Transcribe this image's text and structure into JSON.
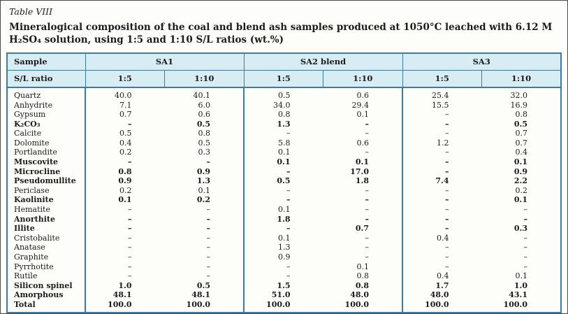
{
  "caption": {
    "label": "Table VIII",
    "title": "Mineralogical composition of the coal and blend ash samples produced at 1050°C leached with 6.12 M H₂SO₄ solution, using 1:5 and 1:10 S/L ratios (wt.%)"
  },
  "table": {
    "corner": {
      "sample_label": "Sample",
      "ratio_label": "S/L ratio"
    },
    "groups": [
      {
        "label": "SA1"
      },
      {
        "label": "SA2 blend"
      },
      {
        "label": "SA3"
      }
    ],
    "sub_headers": [
      "1:5",
      "1:10",
      "1:5",
      "1:10",
      "1:5",
      "1:10"
    ],
    "rows": [
      {
        "mineral": "Quartz",
        "bold": false,
        "values": [
          "40.0",
          "40.1",
          "0.5",
          "0.6",
          "25.4",
          "32.0"
        ]
      },
      {
        "mineral": "Anhydrite",
        "bold": false,
        "values": [
          "7.1",
          "6.0",
          "34.0",
          "29.4",
          "15.5",
          "16.9"
        ]
      },
      {
        "mineral": "Gypsum",
        "bold": false,
        "values": [
          "0.7",
          "0.6",
          "0.8",
          "0.1",
          "–",
          "0.8"
        ]
      },
      {
        "mineral": "K₂CO₃",
        "bold": true,
        "values": [
          "–",
          "0.5",
          "1.3",
          "–",
          "–",
          "0.5"
        ]
      },
      {
        "mineral": "Calcite",
        "bold": false,
        "values": [
          "0.5",
          "0.8",
          "–",
          "–",
          "–",
          "0.7"
        ]
      },
      {
        "mineral": "Dolomite",
        "bold": false,
        "values": [
          "0.4",
          "0.5",
          "5.8",
          "0.6",
          "1.2",
          "0.7"
        ]
      },
      {
        "mineral": "Portlandite",
        "bold": false,
        "values": [
          "0.2",
          "0.3",
          "0.1",
          "–",
          "–",
          "0.4"
        ]
      },
      {
        "mineral": "Muscovite",
        "bold": true,
        "values": [
          "–",
          "–",
          "0.1",
          "0.1",
          "–",
          "0.1"
        ]
      },
      {
        "mineral": "Microcline",
        "bold": true,
        "values": [
          "0.8",
          "0.9",
          "–",
          "17.0",
          "–",
          "0.9"
        ]
      },
      {
        "mineral": "Pseudomullite",
        "bold": true,
        "values": [
          "0.9",
          "1.3",
          "0.5",
          "1.8",
          "7.4",
          "2.2"
        ]
      },
      {
        "mineral": "Periclase",
        "bold": false,
        "values": [
          "0.2",
          "0.1",
          "–",
          "–",
          "–",
          "0.2"
        ]
      },
      {
        "mineral": "Kaolinite",
        "bold": true,
        "values": [
          "0.1",
          "0.2",
          "–",
          "–",
          "–",
          "0.1"
        ]
      },
      {
        "mineral": "Hematite",
        "bold": false,
        "values": [
          "–",
          "–",
          "0.1",
          "–",
          "–",
          "–"
        ]
      },
      {
        "mineral": "Anorthite",
        "bold": true,
        "values": [
          "–",
          "–",
          "1.8",
          "–",
          "–",
          "–"
        ]
      },
      {
        "mineral": "Illite",
        "bold": true,
        "values": [
          "–",
          "–",
          "–",
          "0.7",
          "–",
          "0.3"
        ]
      },
      {
        "mineral": "Cristobalite",
        "bold": false,
        "values": [
          "–",
          "–",
          "0.1",
          "–",
          "0.4",
          "–"
        ]
      },
      {
        "mineral": "Anatase",
        "bold": false,
        "values": [
          "–",
          "–",
          "1.3",
          "–",
          "–",
          "–"
        ]
      },
      {
        "mineral": "Graphite",
        "bold": false,
        "values": [
          "–",
          "–",
          "0.9",
          "–",
          "–",
          "–"
        ]
      },
      {
        "mineral": "Pyrrhotite",
        "bold": false,
        "values": [
          "–",
          "–",
          "–",
          "0.1",
          "–",
          "–"
        ]
      },
      {
        "mineral": "Rutile",
        "bold": false,
        "values": [
          "–",
          "–",
          "–",
          "0.8",
          "0.4",
          "0.1"
        ]
      },
      {
        "mineral": "Silicon spinel",
        "bold": true,
        "values": [
          "1.0",
          "0.5",
          "1.5",
          "0.8",
          "1.7",
          "1.0"
        ]
      },
      {
        "mineral": "Amorphous",
        "bold": true,
        "values": [
          "48.1",
          "48.1",
          "51.0",
          "48.0",
          "48.0",
          "43.1"
        ]
      },
      {
        "mineral": "Total",
        "bold": true,
        "values": [
          "100.0",
          "100.0",
          "100.0",
          "100.0",
          "100.0",
          "100.0"
        ]
      }
    ]
  },
  "colors": {
    "header_bg": "#d8ecf3",
    "border": "#3a7ca5",
    "figure_border": "#4a4a4a"
  }
}
